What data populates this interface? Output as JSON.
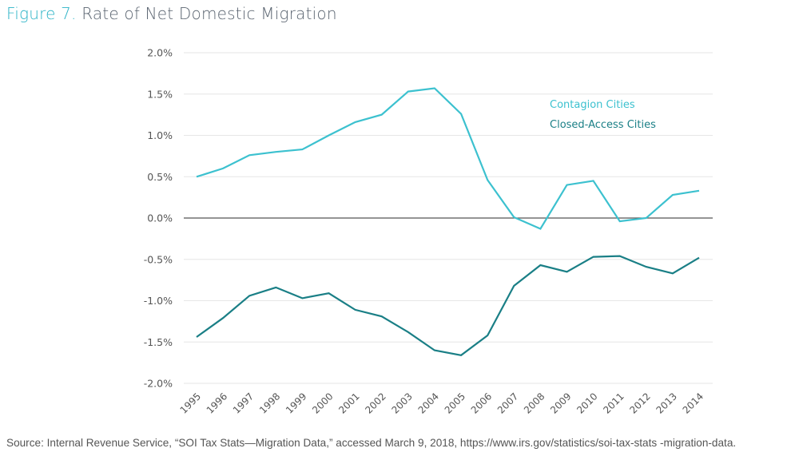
{
  "figure": {
    "number_label": "Figure 7.",
    "title": "Rate of Net Domestic Migration"
  },
  "source_text": "Source: Internal Revenue Service, “SOI Tax Stats—Migration Data,” accessed March 9, 2018, https://www.irs.gov/statistics/soi-tax-stats -migration-data.",
  "colors": {
    "title_accent": "#2bb3c6",
    "contagion": "#3cc1cf",
    "closed_access": "#1a7f86",
    "grid": "#e6e6e6",
    "zero_line": "#555555"
  },
  "chart_data": {
    "type": "line",
    "title": "Rate of Net Domestic Migration",
    "xlabel": "",
    "ylabel": "",
    "x": [
      "1995",
      "1996",
      "1997",
      "1998",
      "1999",
      "2000",
      "2001",
      "2002",
      "2003",
      "2004",
      "2005",
      "2006",
      "2007",
      "2008",
      "2009",
      "2010",
      "2011",
      "2012",
      "2013",
      "2014"
    ],
    "ylim": [
      -2.0,
      2.0
    ],
    "yticks": [
      2.0,
      1.5,
      1.0,
      0.5,
      0.0,
      -0.5,
      -1.0,
      -1.5,
      -2.0
    ],
    "ytick_labels": [
      "2.0%",
      "1.5%",
      "1.0%",
      "0.5%",
      "0.0%",
      "-0.5%",
      "-1.0%",
      "-1.5%",
      "-2.0%"
    ],
    "grid": true,
    "legend_position": "upper-right (inline text)",
    "series": [
      {
        "name": "Contagion Cities",
        "color": "#3cc1cf",
        "values": [
          0.5,
          0.6,
          0.76,
          0.8,
          0.83,
          1.0,
          1.16,
          1.25,
          1.53,
          1.57,
          1.26,
          0.46,
          0.01,
          -0.13,
          0.4,
          0.45,
          -0.04,
          0.0,
          0.28,
          0.33
        ]
      },
      {
        "name": "Closed-Access Cities",
        "color": "#1a7f86",
        "values": [
          -1.44,
          -1.21,
          -0.94,
          -0.84,
          -0.97,
          -0.91,
          -1.11,
          -1.19,
          -1.38,
          -1.6,
          -1.66,
          -1.42,
          -0.82,
          -0.57,
          -0.65,
          -0.47,
          -0.46,
          -0.59,
          -0.67,
          -0.48
        ]
      }
    ]
  }
}
